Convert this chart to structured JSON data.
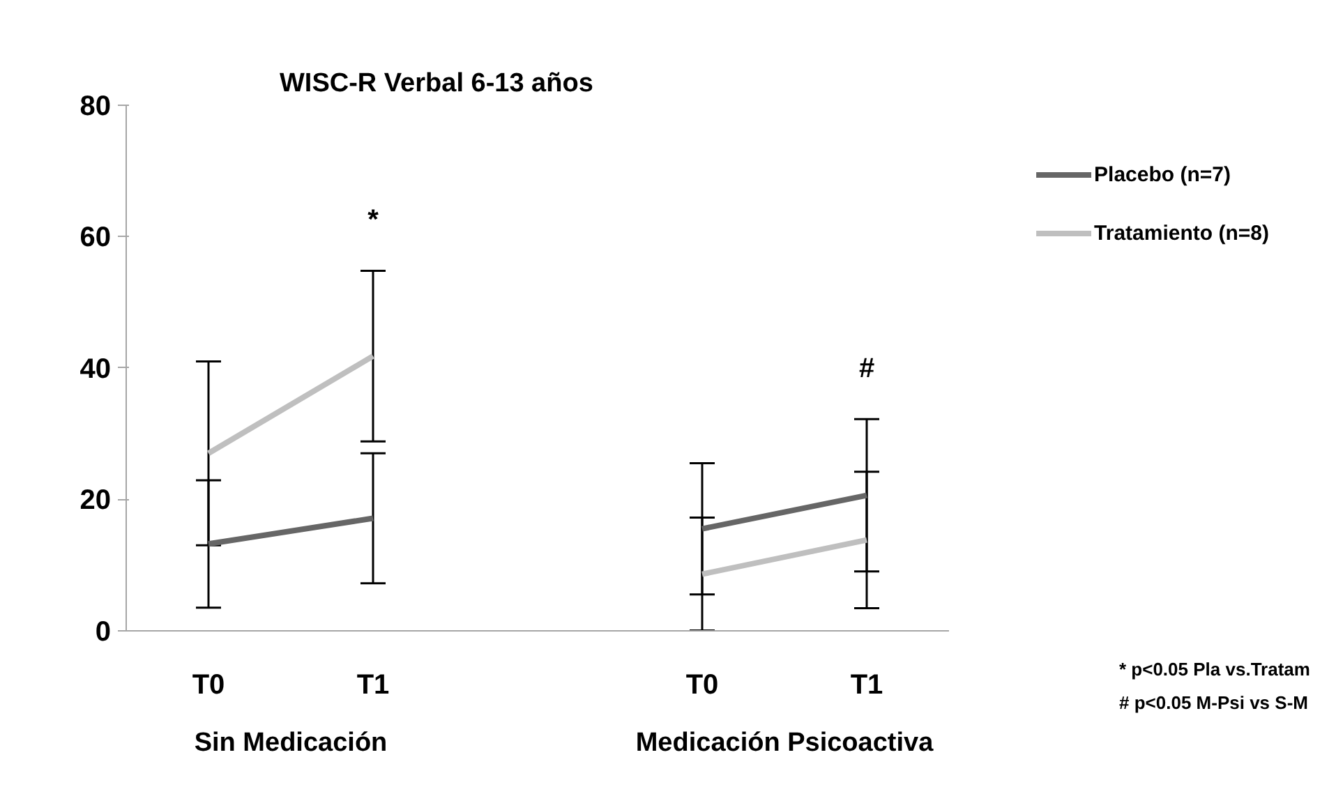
{
  "chart_data": {
    "type": "line",
    "title": "WISC-R Verbal   6-13 años",
    "categories": [
      "T0",
      "T1",
      null,
      "T0",
      "T1"
    ],
    "series": [
      {
        "name": "Placebo (n=7)",
        "color": "#666666",
        "values": [
          13.2,
          17.1,
          null,
          15.5,
          20.6
        ],
        "errors": [
          9.7,
          9.9,
          null,
          10,
          11.6
        ]
      },
      {
        "name": "Tratamiento (n=8)",
        "color": "#bfbfbf",
        "values": [
          27,
          41.8,
          null,
          8.6,
          13.8
        ],
        "errors": [
          14,
          13,
          null,
          8.6,
          10.4
        ]
      }
    ],
    "ylim": [
      0,
      80
    ],
    "yticks": [
      0,
      20,
      40,
      60,
      80
    ],
    "grid": false,
    "legend": "right",
    "marker": "none",
    "line_style": "solid",
    "annotations": [
      "Sin Medicación",
      "Medicación Psicoactiva",
      "*",
      "#",
      "* p<0.05 Pla vs.Tratam",
      "# p<0.05 M-Psi vs S-M"
    ]
  }
}
